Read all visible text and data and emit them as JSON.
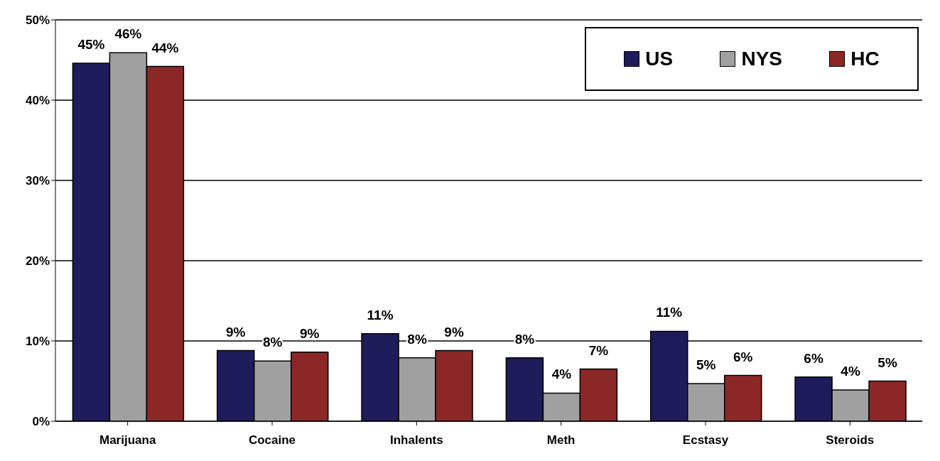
{
  "chart_data": {
    "type": "bar",
    "categories": [
      "Marijuana",
      "Cocaine",
      "Inhalents",
      "Meth",
      "Ecstasy",
      "Steroids"
    ],
    "series": [
      {
        "name": "US",
        "color": "#1f1c5c",
        "values": [
          44.6,
          8.8,
          10.9,
          7.9,
          11.2,
          5.5
        ],
        "value_labels": [
          "45%",
          "9%",
          "11%",
          "8%",
          "11%",
          "6%"
        ]
      },
      {
        "name": "NYS",
        "color": "#a0a0a0",
        "values": [
          45.9,
          7.5,
          7.9,
          3.5,
          4.7,
          3.9
        ],
        "value_labels": [
          "46%",
          "8%",
          "8%",
          "4%",
          "5%",
          "4%"
        ]
      },
      {
        "name": "HC",
        "color": "#8b2827",
        "values": [
          44.2,
          8.6,
          8.8,
          6.5,
          5.7,
          5.0
        ],
        "value_labels": [
          "44%",
          "9%",
          "9%",
          "7%",
          "6%",
          "5%"
        ]
      }
    ],
    "ylim": [
      0,
      50
    ],
    "yticks": [
      {
        "value": 0,
        "label": "0%"
      },
      {
        "value": 10,
        "label": "10%"
      },
      {
        "value": 20,
        "label": "20%"
      },
      {
        "value": 30,
        "label": "30%"
      },
      {
        "value": 40,
        "label": "40%"
      },
      {
        "value": 50,
        "label": "50%"
      }
    ],
    "grid": "y",
    "legend": "top right"
  }
}
